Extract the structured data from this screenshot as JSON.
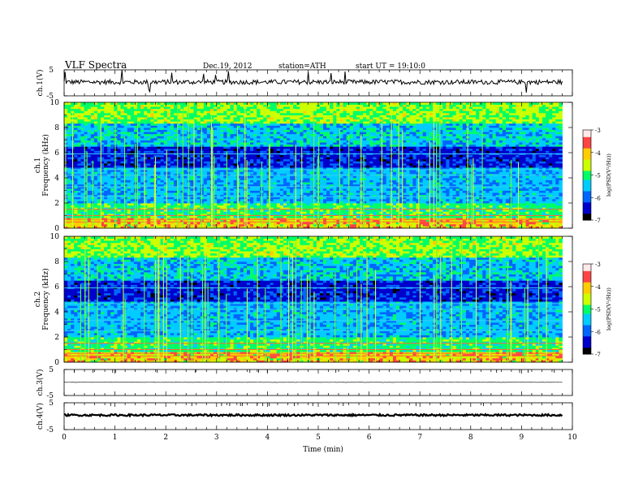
{
  "header": {
    "title": "VLF Spectra",
    "date": "Dec.19, 2012",
    "station": "station=ATH",
    "start": "start  UT =   19:10:0"
  },
  "chart_data": {
    "type": "heatmap",
    "xlabel": "Time  (min)",
    "xlim": [
      0,
      10
    ],
    "xticks": [
      "0",
      "1",
      "2",
      "3",
      "4",
      "5",
      "6",
      "7",
      "8",
      "9",
      "10"
    ],
    "data_end_min": 9.8,
    "panels": [
      {
        "id": "ch1-wave",
        "kind": "waveform",
        "ylabel": "ch.1(V)",
        "ylim": [
          -5,
          5
        ],
        "yticks": [
          "5",
          "-5"
        ]
      },
      {
        "id": "ch1-spec",
        "kind": "spectrogram",
        "ylabel_top": "ch.1",
        "ylabel": "Frequency (kHz)",
        "ylim": [
          0,
          10
        ],
        "yticks": [
          "0",
          "2",
          "4",
          "6",
          "8",
          "10"
        ]
      },
      {
        "id": "ch2-spec",
        "kind": "spectrogram",
        "ylabel_top": "ch.2",
        "ylabel": "Frequency (kHz)",
        "ylim": [
          0,
          10
        ],
        "yticks": [
          "0",
          "2",
          "4",
          "6",
          "8",
          "10"
        ]
      },
      {
        "id": "ch3-wave",
        "kind": "waveform",
        "ylabel": "ch.3(V)",
        "ylim": [
          -5,
          5
        ],
        "yticks": [
          "5",
          "-5"
        ]
      },
      {
        "id": "ch4-wave",
        "kind": "waveform",
        "ylabel": "ch.4(V)",
        "ylim": [
          -5,
          5
        ],
        "yticks": [
          "5",
          "-5"
        ]
      }
    ],
    "colorbar": {
      "label": "log(PSD(V²/Hz))",
      "range": [
        -7,
        -3
      ],
      "ticks": [
        "-3",
        "-4",
        "-5",
        "-6",
        "-7"
      ]
    },
    "colormap": [
      "#000000",
      "#0000cc",
      "#0066ff",
      "#00ccff",
      "#00ff66",
      "#ccff00",
      "#ffcc00",
      "#ff4444",
      "#ffe8e8"
    ]
  }
}
